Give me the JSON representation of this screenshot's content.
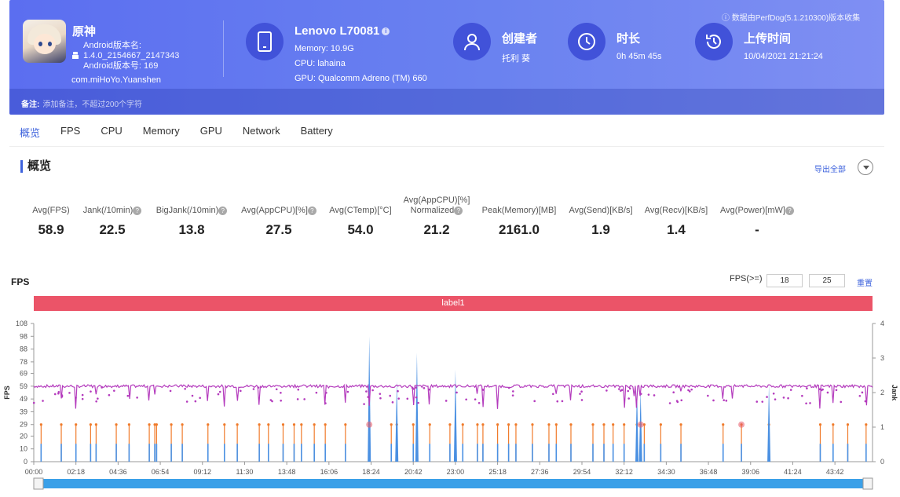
{
  "header": {
    "app_name": "原神",
    "android_version_label": "Android版本名:",
    "android_version_name": "1.4.0_2154667_2147343",
    "android_version_code": "Android版本号: 169",
    "package": "com.miHoYo.Yuanshen",
    "device_name": "Lenovo L70081",
    "memory": "Memory: 10.9G",
    "cpu": "CPU: lahaina",
    "gpu": "GPU: Qualcomm Adreno (TM) 660",
    "creator_label": "创建者",
    "creator_value": "托利 葵",
    "duration_label": "时长",
    "duration_value": "0h 45m 45s",
    "upload_label": "上传时间",
    "upload_value": "10/04/2021 21:21:24",
    "source_note": "数据由PerfDog(5.1.210300)版本收集",
    "remark_key": "备注:",
    "remark_placeholder": "添加备注，不超过200个字符",
    "accent_color": "#5b6ef0"
  },
  "tabs": [
    "概览",
    "FPS",
    "CPU",
    "Memory",
    "GPU",
    "Network",
    "Battery"
  ],
  "overview": {
    "title": "概览",
    "export_label": "导出全部",
    "metrics": [
      {
        "label": "Avg(FPS)",
        "value": "58.9",
        "help": false
      },
      {
        "label": "Jank(/10min)",
        "value": "22.5",
        "help": true
      },
      {
        "label": "BigJank(/10min)",
        "value": "13.8",
        "help": true
      },
      {
        "label": "Avg(AppCPU)[%]",
        "value": "27.5",
        "help": true
      },
      {
        "label": "Avg(CTemp)[°C]",
        "value": "54.0",
        "help": false
      },
      {
        "label": "Avg(AppCPU)[%]\nNormalized",
        "value": "21.2",
        "help": true
      },
      {
        "label": "Peak(Memory)[MB]",
        "value": "2161.0",
        "help": false
      },
      {
        "label": "Avg(Send)[KB/s]",
        "value": "1.9",
        "help": false
      },
      {
        "label": "Avg(Recv)[KB/s]",
        "value": "1.4",
        "help": false
      },
      {
        "label": "Avg(Power)[mW]",
        "value": "-",
        "help": true
      }
    ]
  },
  "fps_panel": {
    "title": "FPS",
    "threshold_label": "FPS(>=)",
    "threshold_1": "18",
    "threshold_2": "25",
    "reset_label": "重置",
    "label_bar": "label1"
  },
  "chart_data": {
    "type": "line",
    "ylabel": "FPS",
    "y2label": "Jank",
    "y_ticks": [
      0,
      10,
      20,
      29,
      39,
      49,
      59,
      69,
      78,
      88,
      98,
      108
    ],
    "y2_ticks": [
      0,
      1,
      2,
      3,
      4
    ],
    "ylim": [
      0,
      108
    ],
    "y2lim": [
      0,
      4
    ],
    "x_ticks": [
      "00:00",
      "02:18",
      "04:36",
      "06:54",
      "09:12",
      "11:30",
      "13:48",
      "16:06",
      "18:24",
      "20:42",
      "23:00",
      "25:18",
      "27:36",
      "29:54",
      "32:12",
      "34:30",
      "36:48",
      "39:06",
      "41:24",
      "43:42"
    ],
    "series": [
      {
        "name": "FPS",
        "color": "#b43bbd",
        "baseline": 59
      },
      {
        "name": "Jank",
        "color": "#f07b2b"
      },
      {
        "name": "BigJank",
        "color": "#4a90e2"
      }
    ],
    "jank_times_min": [
      0.4,
      1.5,
      2.3,
      3.1,
      3.4,
      4.5,
      5.2,
      6.3,
      6.6,
      6.7,
      7.5,
      8.1,
      9.5,
      10.4,
      11.1,
      12.3,
      12.8,
      13.6,
      14.2,
      14.6,
      15.3,
      15.9,
      17.0,
      18.3,
      19.5,
      19.8,
      20.7,
      21.6,
      22.7,
      23.4,
      24.2,
      24.5,
      25.3,
      25.9,
      26.3,
      27.2,
      28.1,
      28.5,
      29.3,
      30.5,
      31.1,
      31.6,
      32.2,
      32.9,
      33.1,
      33.3,
      34.2,
      35.3,
      37.6,
      38.6,
      40.1,
      42.9,
      43.6,
      44.4,
      45.4
    ],
    "bigjank_spikes": [
      [
        18.3,
        98
      ],
      [
        19.8,
        63
      ],
      [
        20.9,
        85
      ],
      [
        23.0,
        72
      ],
      [
        32.9,
        58
      ],
      [
        33.1,
        56
      ],
      [
        40.1,
        60
      ]
    ],
    "xlim_min": [
      0,
      45.75
    ]
  },
  "scrollbar": {
    "color": "#3aa0e8"
  }
}
